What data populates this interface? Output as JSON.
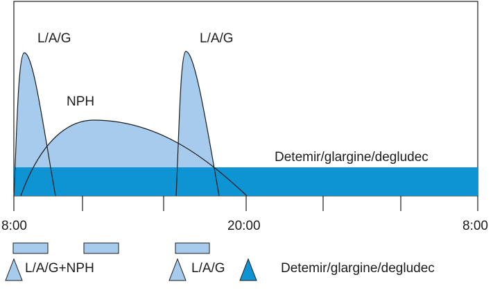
{
  "curve_labels": {
    "lag_first": "L/A/G",
    "lag_second": "L/A/G",
    "nph": "NPH",
    "basal": "Detemir/glargine/degludec"
  },
  "axis": {
    "tick_left": "8:00",
    "tick_middle": "20:00",
    "tick_right": "8:00"
  },
  "legend": {
    "lag_nph": "L/A/G+NPH",
    "lag": "L/A/G",
    "basal": "Detemir/glargine/degludec"
  },
  "colors": {
    "light_blue": "#a6cbec",
    "basal_blue": "#0f94d3",
    "outline": "#1a1a1a"
  }
}
